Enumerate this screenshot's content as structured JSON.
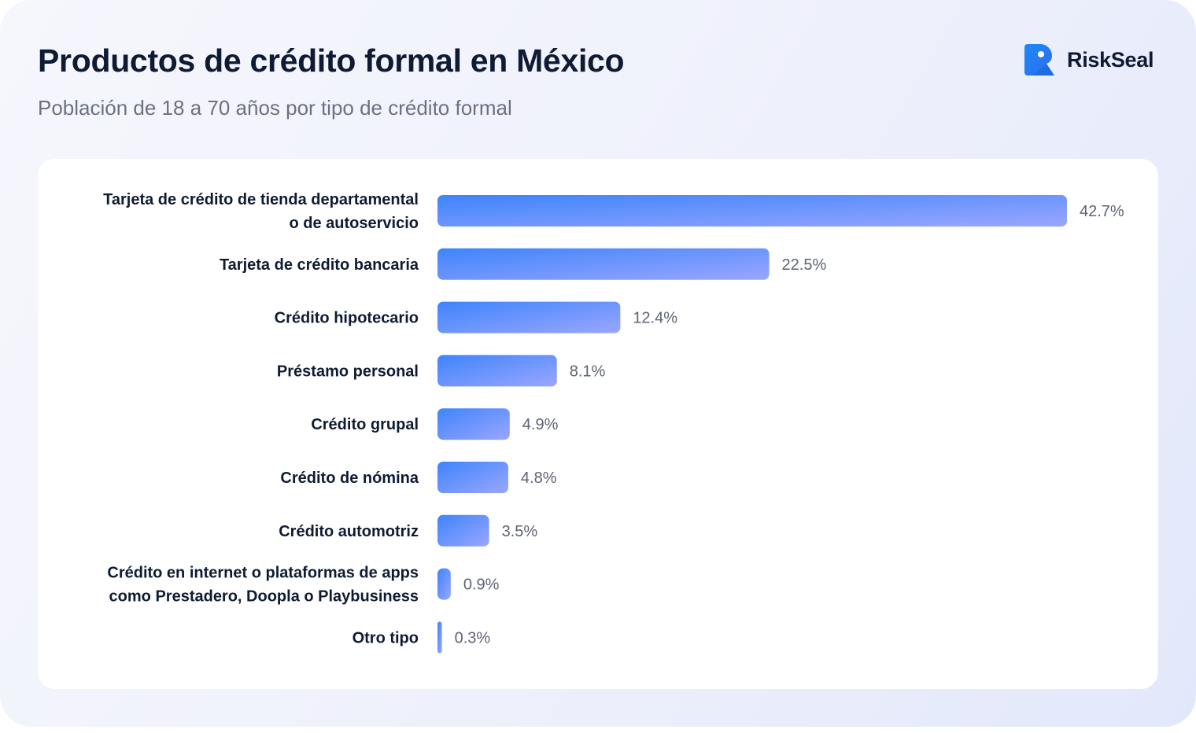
{
  "header": {
    "title": "Productos de crédito formal en México",
    "subtitle": "Población de 18 a 70 años por tipo de crédito formal",
    "brand": "RiskSeal",
    "brand_icon": "riskseal-logo-icon"
  },
  "colors": {
    "bar_start": "#3e84fb",
    "bar_end": "#9aa6ff",
    "accent": "#1e88f5"
  },
  "chart_data": {
    "type": "bar",
    "orientation": "horizontal",
    "title": "Productos de crédito formal en México",
    "subtitle": "Población de 18 a 70 años por tipo de crédito formal",
    "categories": [
      [
        "Tarjeta de crédito de tienda departamental",
        "o de autoservicio"
      ],
      [
        "Tarjeta de crédito bancaria"
      ],
      [
        "Crédito hipotecario"
      ],
      [
        "Préstamo personal"
      ],
      [
        "Crédito grupal"
      ],
      [
        "Crédito de nómina"
      ],
      [
        "Crédito automotriz"
      ],
      [
        "Crédito en internet o plataformas de apps",
        "como Prestadero, Doopla o Playbusiness"
      ],
      [
        "Otro tipo"
      ]
    ],
    "values": [
      42.7,
      22.5,
      12.4,
      8.1,
      4.9,
      4.8,
      3.5,
      0.9,
      0.3
    ],
    "value_labels": [
      "42.7%",
      "22.5%",
      "12.4%",
      "8.1%",
      "4.9%",
      "4.8%",
      "3.5%",
      "0.9%",
      "0.3%"
    ],
    "unit": "%",
    "grid": false,
    "legend": "none"
  }
}
